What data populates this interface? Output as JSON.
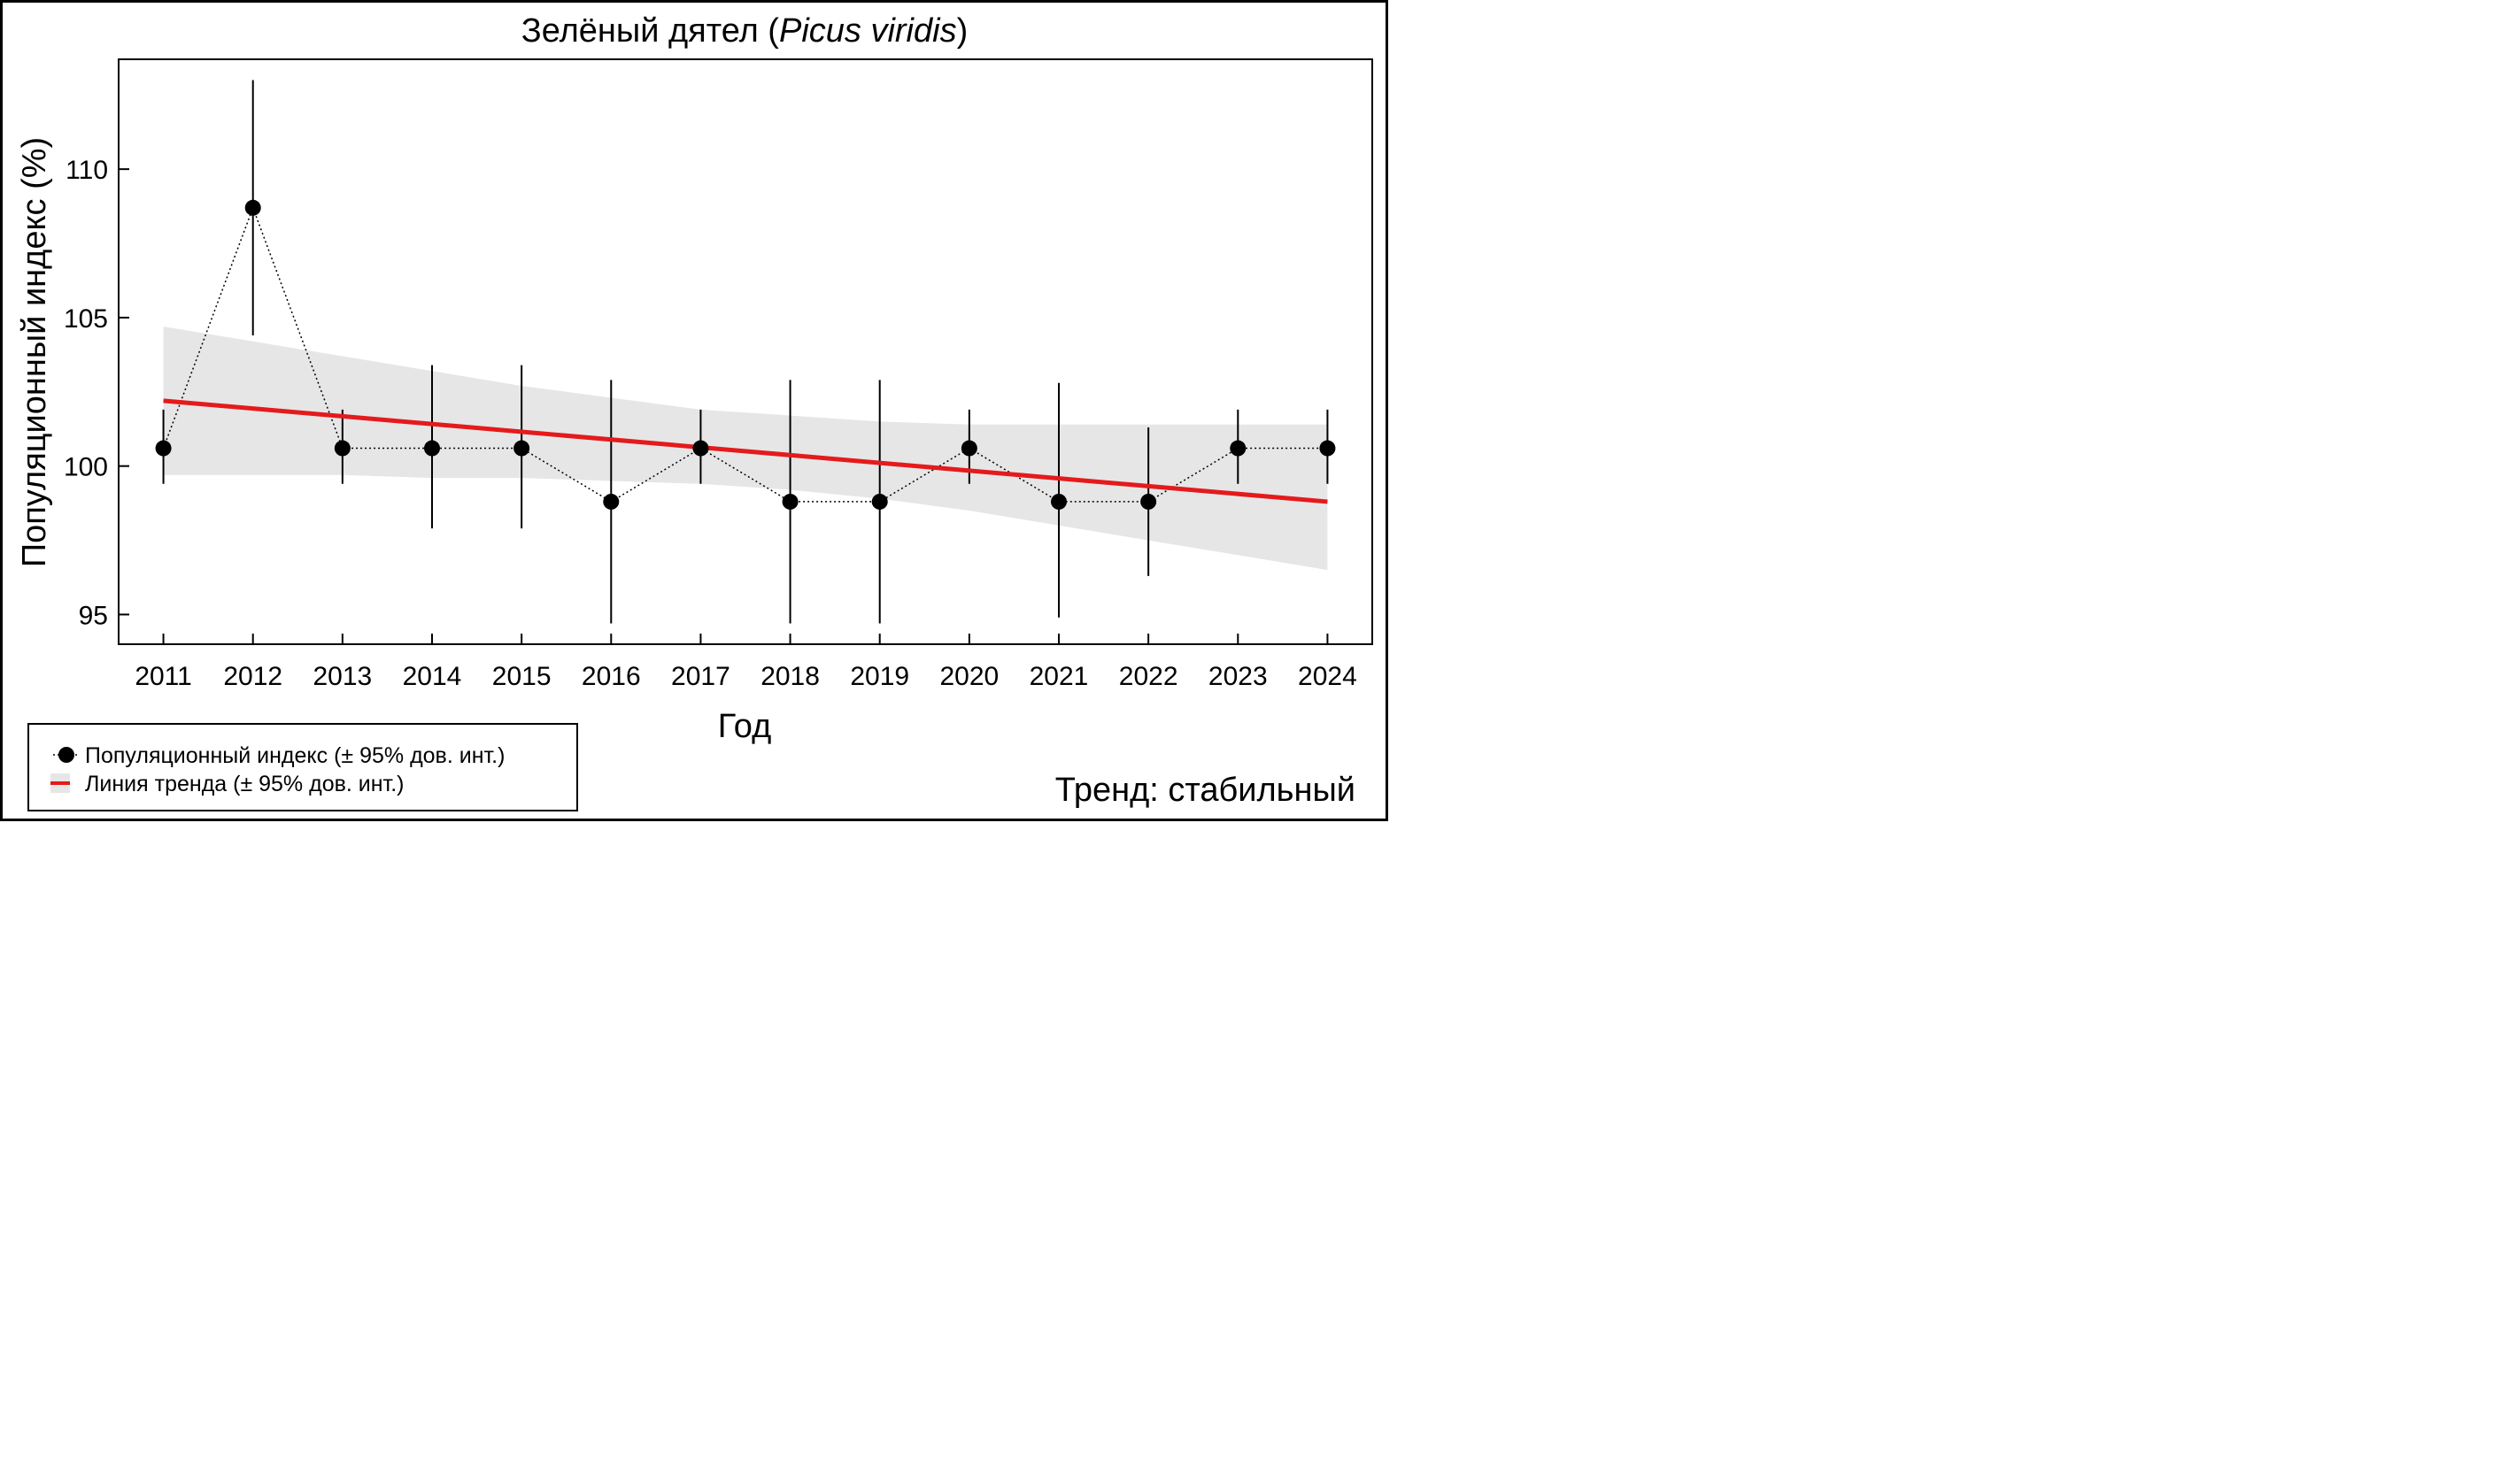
{
  "chart_data": {
    "type": "line",
    "title": {
      "main": "Зелёный дятел (",
      "latin": "Picus viridis",
      "close": ")"
    },
    "xlabel": "Год",
    "ylabel": "Популяционный индекс (%)",
    "x": [
      2011,
      2012,
      2013,
      2014,
      2015,
      2016,
      2017,
      2018,
      2019,
      2020,
      2021,
      2022,
      2023,
      2024
    ],
    "x_tick_labels": [
      "2011",
      "2012",
      "2013",
      "2014",
      "2015",
      "2016",
      "2017",
      "2018",
      "2019",
      "2020",
      "2021",
      "2022",
      "2023",
      "2024"
    ],
    "xlim": [
      2010.5,
      2024.5
    ],
    "ylim": [
      94,
      113.7
    ],
    "y_ticks": [
      95,
      100,
      105,
      110
    ],
    "y_tick_labels": [
      "95",
      "100",
      "105",
      "110"
    ],
    "series": [
      {
        "name": "Популяционный индекс (± 95% дов. инт.)",
        "values": [
          100.6,
          108.7,
          100.6,
          100.6,
          100.6,
          98.8,
          100.6,
          98.8,
          98.8,
          100.6,
          98.8,
          98.8,
          100.6,
          100.6
        ],
        "ci_lower": [
          99.4,
          104.4,
          99.4,
          97.9,
          97.9,
          94.7,
          99.4,
          94.7,
          94.7,
          99.4,
          94.9,
          96.3,
          99.4,
          99.4
        ],
        "ci_upper": [
          101.9,
          113.0,
          101.9,
          103.4,
          103.4,
          102.9,
          101.9,
          102.9,
          102.9,
          101.9,
          102.8,
          101.3,
          101.9,
          101.9
        ]
      },
      {
        "name": "Линия тренда (± 95% дов. инт.)",
        "start": 102.2,
        "end": 98.8,
        "band_lower": [
          99.7,
          99.7,
          99.7,
          99.6,
          99.6,
          99.5,
          99.4,
          99.2,
          98.9,
          98.5,
          98.0,
          97.5,
          97.0,
          96.5
        ],
        "band_upper": [
          104.7,
          104.2,
          103.7,
          103.2,
          102.7,
          102.3,
          101.9,
          101.7,
          101.5,
          101.4,
          101.4,
          101.4,
          101.4,
          101.4
        ]
      }
    ],
    "legend": {
      "position": "bottom-left",
      "entries": [
        "Популяционный индекс (± 95% дов. инт.)",
        "Линия тренда (± 95% дов. инт.)"
      ]
    },
    "trend_status": "Тренд: стабильный"
  },
  "colors": {
    "points": "#000000",
    "trend_line": "#e41a1c",
    "band": "#e6e6e6",
    "trend_status": "#00007f"
  }
}
